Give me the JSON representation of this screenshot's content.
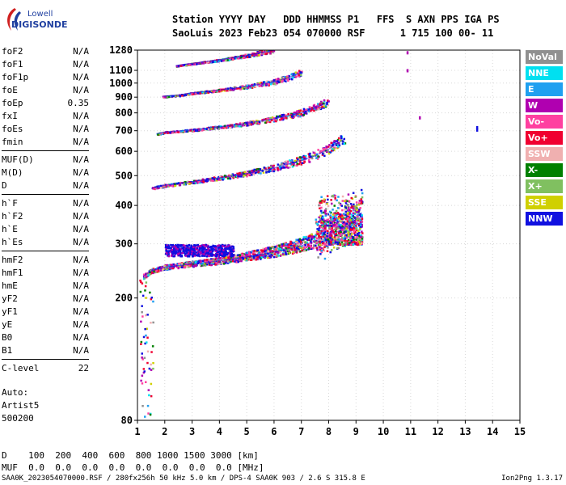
{
  "logo": {
    "top": "Lowell",
    "bottom": "DIGISONDE"
  },
  "header": {
    "line1": "Station YYYY DAY   DDD HHMMSS P1   FFS  S AXN PPS IGA PS",
    "line2": "SaoLuis 2023 Feb23 054 070000 RSF      1 715 100 00- 11"
  },
  "params": [
    {
      "name": "foF2",
      "value": "N/A"
    },
    {
      "name": "foF1",
      "value": "N/A"
    },
    {
      "name": "foF1p",
      "value": "N/A"
    },
    {
      "name": "foE",
      "value": "N/A"
    },
    {
      "name": "foEp",
      "value": "0.35"
    },
    {
      "name": "fxI",
      "value": "N/A"
    },
    {
      "name": "foEs",
      "value": "N/A"
    },
    {
      "name": "fmin",
      "value": "N/A"
    },
    {
      "sep": true
    },
    {
      "name": "MUF(D)",
      "value": "N/A"
    },
    {
      "name": "M(D)",
      "value": "N/A"
    },
    {
      "name": "D",
      "value": "N/A"
    },
    {
      "sep": true
    },
    {
      "name": "h`F",
      "value": "N/A"
    },
    {
      "name": "h`F2",
      "value": "N/A"
    },
    {
      "name": "h`E",
      "value": "N/A"
    },
    {
      "name": "h`Es",
      "value": "N/A"
    },
    {
      "sep": true
    },
    {
      "name": "hmF2",
      "value": "N/A"
    },
    {
      "name": "hmF1",
      "value": "N/A"
    },
    {
      "name": "hmE",
      "value": "N/A"
    },
    {
      "name": "yF2",
      "value": "N/A"
    },
    {
      "name": "yF1",
      "value": "N/A"
    },
    {
      "name": "yE",
      "value": "N/A"
    },
    {
      "name": "B0",
      "value": "N/A"
    },
    {
      "name": "B1",
      "value": "N/A"
    },
    {
      "sep": true
    },
    {
      "name": "C-level",
      "value": "22"
    }
  ],
  "auto": {
    "label": "Auto:",
    "artist": "Artist5",
    "version": "500200"
  },
  "legend": [
    {
      "label": "NoVal",
      "color": "#909090"
    },
    {
      "label": "NNE",
      "color": "#00e0f0"
    },
    {
      "label": "E",
      "color": "#20a0f0"
    },
    {
      "label": "W",
      "color": "#b000b0"
    },
    {
      "label": "Vo-",
      "color": "#ff40a0"
    },
    {
      "label": "Vo+",
      "color": "#f00030"
    },
    {
      "label": "SSW",
      "color": "#f0b0b0"
    },
    {
      "label": "X-",
      "color": "#008000"
    },
    {
      "label": "X+",
      "color": "#80c060"
    },
    {
      "label": "SSE",
      "color": "#d0d000"
    },
    {
      "label": "NNW",
      "color": "#1010e0"
    }
  ],
  "bottom": {
    "line1": "D    100  200  400  600  800 1000 1500 3000 [km]",
    "line2": "MUF  0.0  0.0  0.0  0.0  0.0  0.0  0.0  0.0 [MHz]"
  },
  "footer": {
    "left": "SAA0K_2023054070000.RSF / 280fx256h 50 kHz 5.0 km / DPS-4 SAA0K 903 / 2.6 S 315.8 E",
    "right": "Ion2Png 1.3.17"
  },
  "chart_data": {
    "type": "scatter",
    "title": "",
    "xlabel": "",
    "ylabel": "",
    "xlim": [
      1,
      15
    ],
    "ylim": [
      80,
      1280
    ],
    "xticks": [
      1,
      2,
      3,
      4,
      5,
      6,
      7,
      8,
      9,
      10,
      11,
      12,
      13,
      14,
      15
    ],
    "yticks": [
      80,
      200,
      300,
      400,
      500,
      600,
      700,
      800,
      900,
      1000,
      1100,
      1280
    ],
    "grid": true,
    "yscale": "log",
    "traces": [
      {
        "name": "1st hop",
        "x": [
          1.2,
          1.5,
          2.0,
          3.0,
          4.0,
          5.0,
          6.0,
          7.0,
          7.5,
          8.0,
          8.5,
          9.0,
          9.2
        ],
        "y": [
          235,
          245,
          252,
          258,
          264,
          272,
          282,
          296,
          306,
          318,
          335,
          360,
          380
        ]
      },
      {
        "name": "2nd hop",
        "x": [
          1.5,
          2.0,
          3.0,
          4.0,
          5.0,
          6.0,
          7.0,
          7.5,
          8.0,
          8.3,
          8.6
        ],
        "y": [
          455,
          465,
          478,
          492,
          508,
          530,
          560,
          580,
          610,
          635,
          660
        ]
      },
      {
        "name": "3rd hop",
        "x": [
          1.7,
          2.0,
          3.0,
          4.0,
          5.0,
          6.0,
          7.0,
          7.5,
          8.0
        ],
        "y": [
          685,
          693,
          705,
          720,
          740,
          765,
          800,
          830,
          870
        ]
      },
      {
        "name": "4th hop",
        "x": [
          1.9,
          2.5,
          3.0,
          4.0,
          5.0,
          6.0,
          6.5,
          7.0
        ],
        "y": [
          905,
          915,
          930,
          950,
          975,
          1010,
          1040,
          1080
        ]
      },
      {
        "name": "5th hop",
        "x": [
          2.4,
          3.0,
          4.0,
          5.0,
          5.5,
          6.0
        ],
        "y": [
          1140,
          1160,
          1190,
          1230,
          1255,
          1280
        ]
      }
    ]
  }
}
